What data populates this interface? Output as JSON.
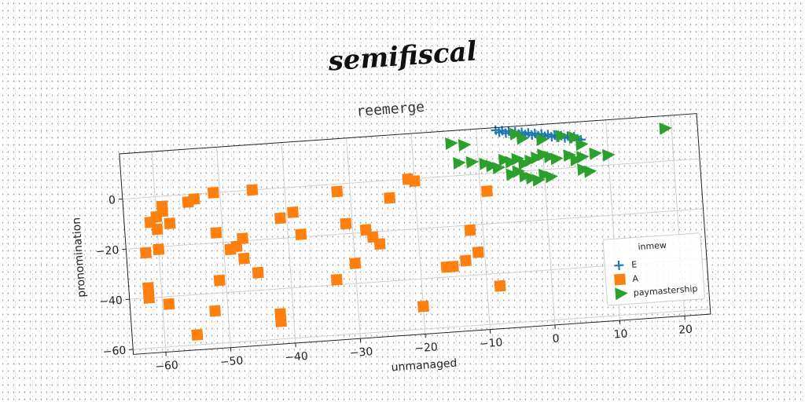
{
  "suptitle": "semifiscal",
  "chart_data": {
    "type": "scatter",
    "title": "reemerge",
    "xlabel": "unmanaged",
    "ylabel": "pronomination",
    "xlim": [
      -65,
      24
    ],
    "ylim": [
      -62,
      18
    ],
    "xticks": [
      -60,
      -50,
      -40,
      -30,
      -20,
      -10,
      0,
      10,
      20
    ],
    "yticks": [
      -60,
      -40,
      -20,
      0
    ],
    "grid": true,
    "legend": {
      "title": "inmew",
      "placement": "lower-right"
    },
    "series": [
      {
        "name": "E",
        "marker": "plus",
        "color": "#1f77b4",
        "points": [
          [
            -7,
            17
          ],
          [
            -6,
            16.6
          ],
          [
            -5,
            16.2
          ],
          [
            -4,
            15.8
          ],
          [
            -3,
            15.4
          ],
          [
            -2,
            15
          ],
          [
            -1,
            14.6
          ],
          [
            0,
            14.2
          ],
          [
            1,
            13.8
          ],
          [
            2,
            13.4
          ],
          [
            3,
            13
          ],
          [
            4,
            12.6
          ],
          [
            5,
            12.2
          ],
          [
            -6.5,
            16
          ],
          [
            -5.5,
            15.5
          ],
          [
            -4.5,
            15.2
          ],
          [
            -3.5,
            14.8
          ],
          [
            -2.5,
            14.4
          ],
          [
            -1.5,
            14
          ],
          [
            -0.5,
            13.6
          ],
          [
            0.5,
            13.2
          ],
          [
            1.5,
            12.8
          ],
          [
            2.5,
            12.4
          ],
          [
            3.5,
            12
          ],
          [
            4.5,
            11.6
          ],
          [
            5.5,
            11.2
          ],
          [
            6,
            10.8
          ]
        ]
      },
      {
        "name": "A",
        "marker": "square",
        "color": "#ff7f0e",
        "points": [
          [
            -61,
            -10
          ],
          [
            -60,
            -8
          ],
          [
            -59,
            -6
          ],
          [
            -60,
            -13
          ],
          [
            -58,
            -11
          ],
          [
            -59,
            -4
          ],
          [
            -62,
            -22
          ],
          [
            -60,
            -21
          ],
          [
            -62,
            -36
          ],
          [
            -62,
            -40
          ],
          [
            -59,
            -43
          ],
          [
            -55,
            -3
          ],
          [
            -54,
            -2
          ],
          [
            -51,
            0
          ],
          [
            -51,
            -16
          ],
          [
            -49,
            -23
          ],
          [
            -48,
            -22
          ],
          [
            -47,
            -19
          ],
          [
            -47,
            -27
          ],
          [
            -51,
            -35
          ],
          [
            -52,
            -47
          ],
          [
            -55,
            -56
          ],
          [
            -45,
            -33
          ],
          [
            -45,
            0
          ],
          [
            -42,
            -53
          ],
          [
            -42,
            -50
          ],
          [
            -41,
            -12
          ],
          [
            -39,
            -10
          ],
          [
            -38,
            -19
          ],
          [
            -32,
            -3
          ],
          [
            -33,
            -38
          ],
          [
            -31,
            -16
          ],
          [
            -30,
            -32
          ],
          [
            -28,
            -19
          ],
          [
            -27,
            -22
          ],
          [
            -26,
            -25
          ],
          [
            -24,
            -7
          ],
          [
            -21,
            0
          ],
          [
            -20,
            -1
          ],
          [
            -20,
            -51
          ],
          [
            -16,
            -36
          ],
          [
            -15,
            -36
          ],
          [
            -13,
            -34
          ],
          [
            -12,
            -22
          ],
          [
            -11,
            -31
          ],
          [
            -9,
            -7
          ],
          [
            -8,
            -45
          ]
        ]
      },
      {
        "name": "paymastership",
        "marker": "triangle-right",
        "color": "#2ca02c",
        "points": [
          [
            -14,
            13
          ],
          [
            -12,
            12
          ],
          [
            -4,
            15
          ],
          [
            -3,
            13
          ],
          [
            0,
            12
          ],
          [
            3,
            13
          ],
          [
            5,
            12
          ],
          [
            6,
            9
          ],
          [
            -13,
            5
          ],
          [
            -11,
            5
          ],
          [
            -9,
            4
          ],
          [
            -8,
            3
          ],
          [
            -7,
            2
          ],
          [
            -6,
            5
          ],
          [
            -5,
            4
          ],
          [
            -4,
            5
          ],
          [
            -3,
            3
          ],
          [
            -2,
            4
          ],
          [
            -1,
            5
          ],
          [
            0,
            6
          ],
          [
            1,
            5
          ],
          [
            2,
            4
          ],
          [
            4,
            5
          ],
          [
            5,
            3
          ],
          [
            6,
            4
          ],
          [
            8,
            5
          ],
          [
            10,
            4
          ],
          [
            -5,
            -1
          ],
          [
            -4,
            0
          ],
          [
            -3,
            -2
          ],
          [
            -2,
            -3
          ],
          [
            -1,
            -4
          ],
          [
            0,
            -2
          ],
          [
            1,
            -3
          ],
          [
            6,
            -1
          ],
          [
            7,
            -2
          ],
          [
            19,
            13
          ]
        ]
      }
    ]
  }
}
